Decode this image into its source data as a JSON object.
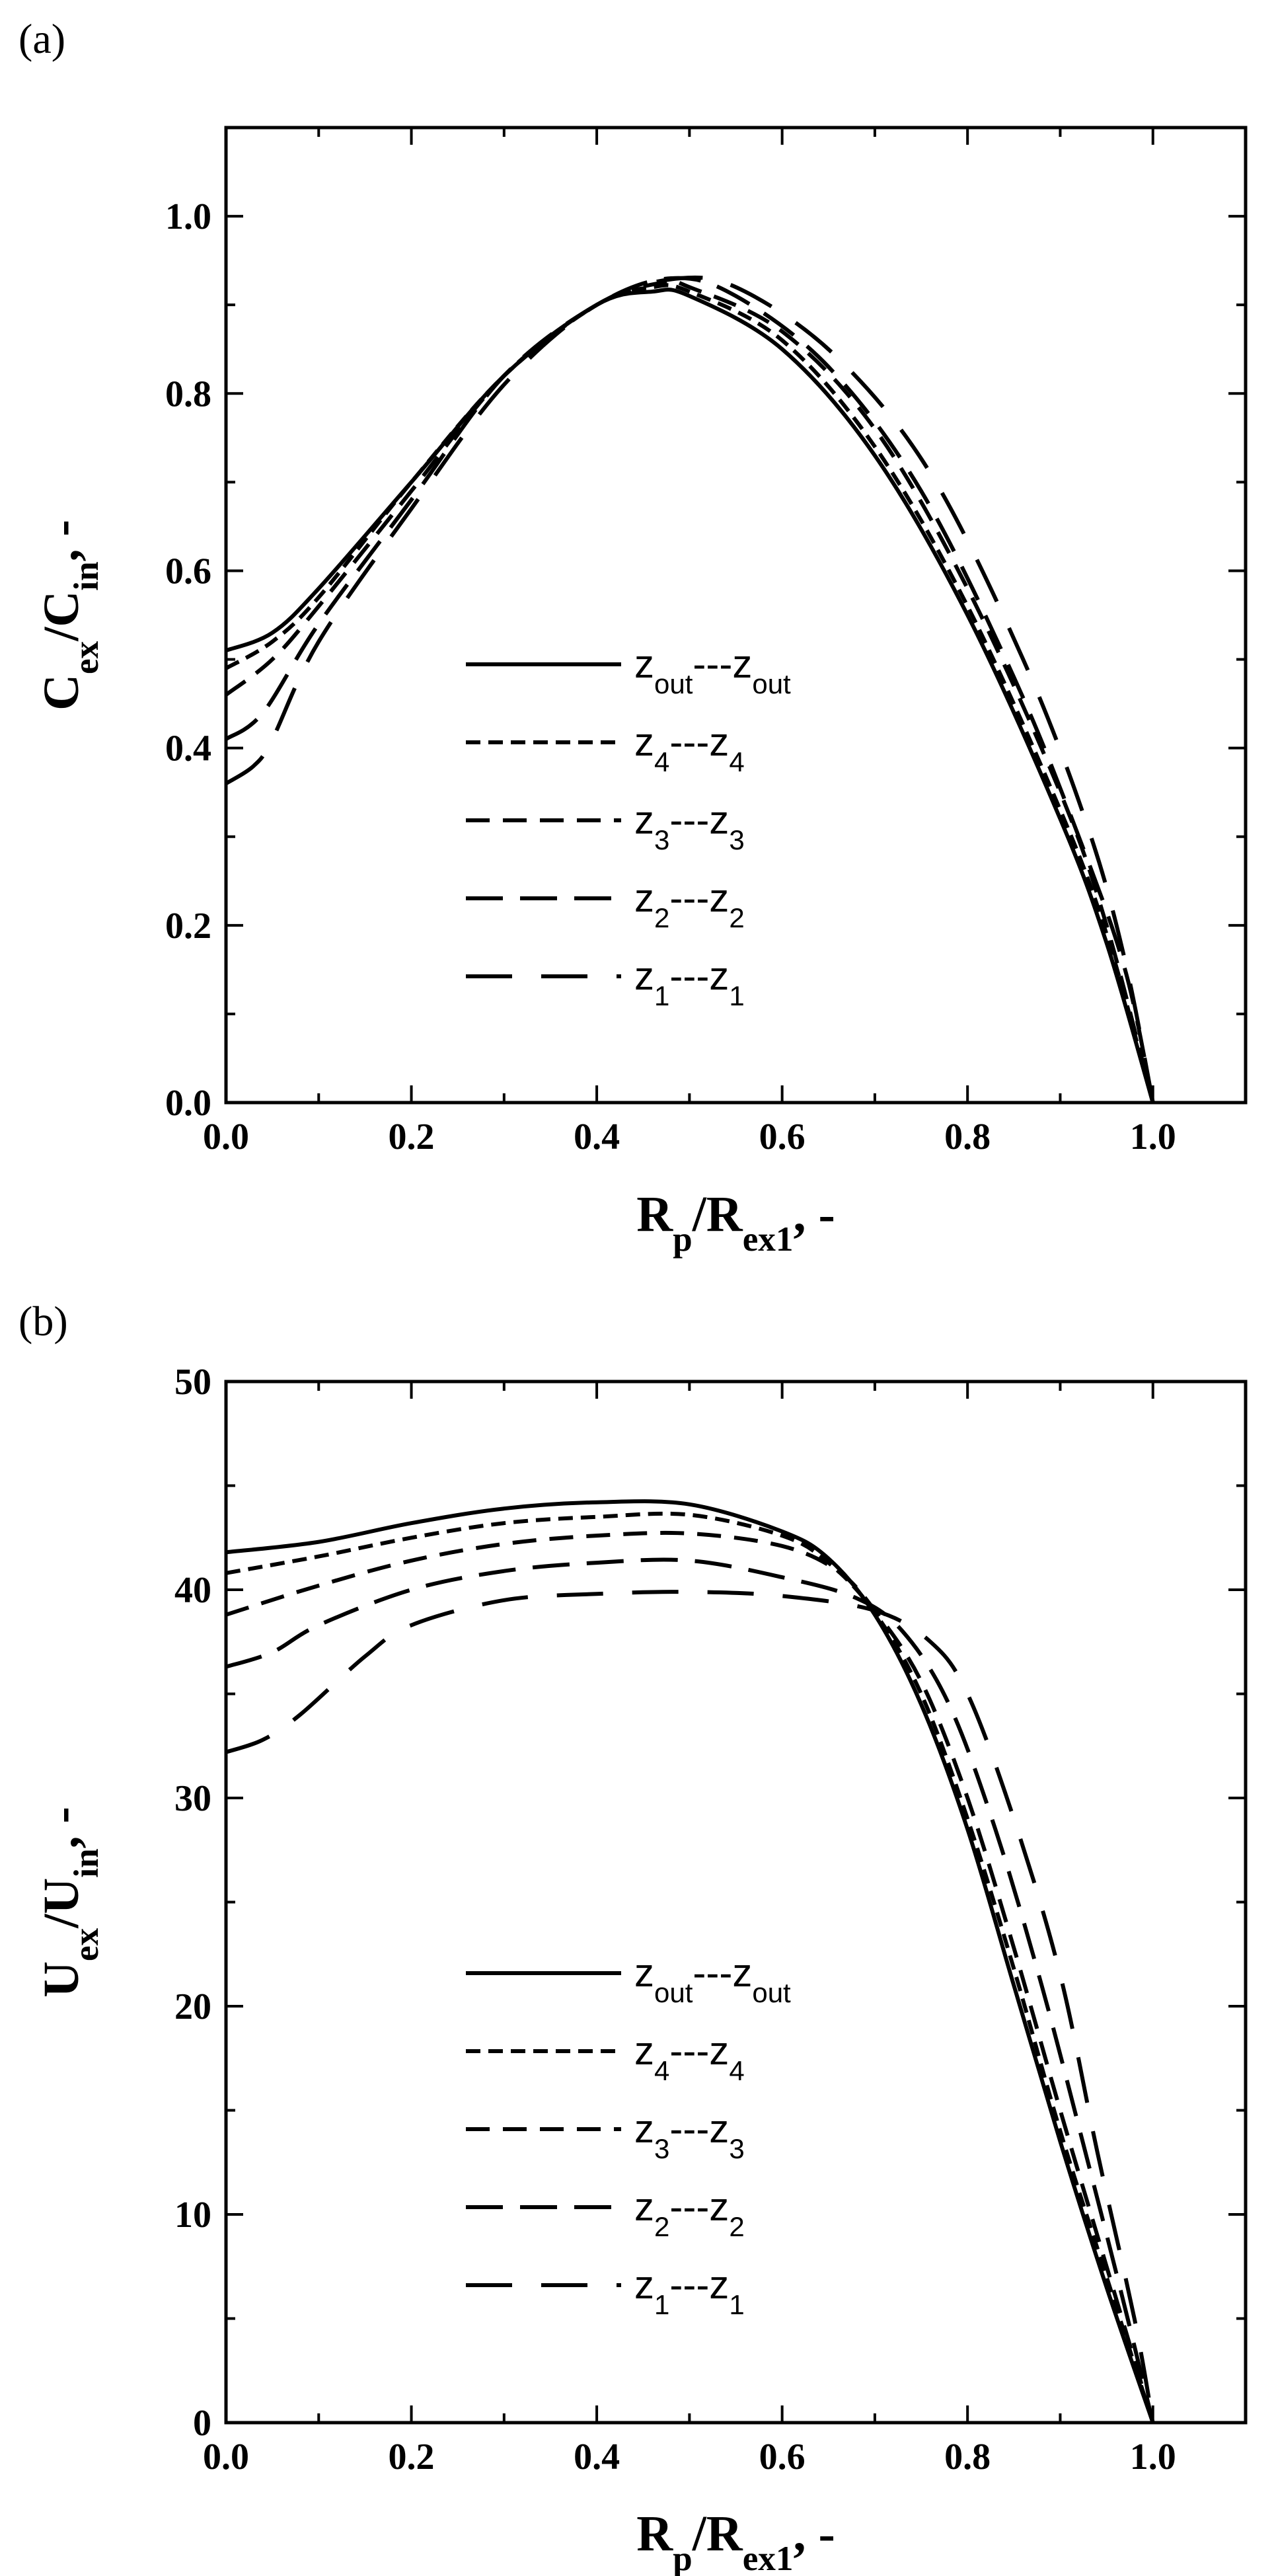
{
  "chart_data": [
    {
      "panel_label": "(a)",
      "type": "line",
      "xlabel": "Rp/Rex1, -",
      "ylabel": "Cex/Cin, -",
      "xlim": [
        0.0,
        1.1
      ],
      "ylim": [
        0.0,
        1.1
      ],
      "x_ticks": [
        "0.0",
        "0.2",
        "0.4",
        "0.6",
        "0.8",
        "1.0"
      ],
      "y_ticks": [
        "0.0",
        "0.2",
        "0.4",
        "0.6",
        "0.8",
        "1.0"
      ],
      "legend_position": "center",
      "series": [
        {
          "name": "zout---zout",
          "dash": "solid",
          "points": [
            [
              0,
              0.51
            ],
            [
              0.05,
              0.53
            ],
            [
              0.1,
              0.58
            ],
            [
              0.2,
              0.7
            ],
            [
              0.3,
              0.82
            ],
            [
              0.4,
              0.9
            ],
            [
              0.46,
              0.915
            ],
            [
              0.5,
              0.91
            ],
            [
              0.6,
              0.85
            ],
            [
              0.7,
              0.73
            ],
            [
              0.8,
              0.55
            ],
            [
              0.9,
              0.32
            ],
            [
              0.95,
              0.18
            ],
            [
              1.0,
              0.0
            ]
          ]
        },
        {
          "name": "z4---z4",
          "dash": "short",
          "points": [
            [
              0,
              0.49
            ],
            [
              0.05,
              0.52
            ],
            [
              0.1,
              0.57
            ],
            [
              0.2,
              0.7
            ],
            [
              0.3,
              0.82
            ],
            [
              0.4,
              0.9
            ],
            [
              0.46,
              0.92
            ],
            [
              0.5,
              0.915
            ],
            [
              0.6,
              0.86
            ],
            [
              0.7,
              0.74
            ],
            [
              0.8,
              0.56
            ],
            [
              0.9,
              0.33
            ],
            [
              0.95,
              0.19
            ],
            [
              1.0,
              0.0
            ]
          ]
        },
        {
          "name": "z3---z3",
          "dash": "medium",
          "points": [
            [
              0,
              0.46
            ],
            [
              0.05,
              0.5
            ],
            [
              0.1,
              0.56
            ],
            [
              0.2,
              0.69
            ],
            [
              0.3,
              0.82
            ],
            [
              0.4,
              0.9
            ],
            [
              0.47,
              0.925
            ],
            [
              0.5,
              0.92
            ],
            [
              0.6,
              0.87
            ],
            [
              0.7,
              0.76
            ],
            [
              0.8,
              0.58
            ],
            [
              0.9,
              0.35
            ],
            [
              0.95,
              0.2
            ],
            [
              1.0,
              0.0
            ]
          ]
        },
        {
          "name": "z2---z2",
          "dash": "long",
          "points": [
            [
              0,
              0.41
            ],
            [
              0.04,
              0.44
            ],
            [
              0.1,
              0.54
            ],
            [
              0.2,
              0.68
            ],
            [
              0.3,
              0.82
            ],
            [
              0.4,
              0.9
            ],
            [
              0.48,
              0.93
            ],
            [
              0.55,
              0.91
            ],
            [
              0.65,
              0.83
            ],
            [
              0.75,
              0.69
            ],
            [
              0.85,
              0.48
            ],
            [
              0.92,
              0.3
            ],
            [
              0.97,
              0.15
            ],
            [
              1.0,
              0.0
            ]
          ]
        },
        {
          "name": "z1---z1",
          "dash": "longgap",
          "points": [
            [
              0.0,
              0.36
            ],
            [
              0.03,
              0.38
            ],
            [
              0.05,
              0.41
            ],
            [
              0.1,
              0.52
            ],
            [
              0.2,
              0.67
            ],
            [
              0.3,
              0.81
            ],
            [
              0.4,
              0.9
            ],
            [
              0.49,
              0.93
            ],
            [
              0.56,
              0.915
            ],
            [
              0.66,
              0.84
            ],
            [
              0.76,
              0.71
            ],
            [
              0.86,
              0.5
            ],
            [
              0.93,
              0.31
            ],
            [
              0.97,
              0.16
            ],
            [
              1.0,
              0.0
            ]
          ]
        }
      ]
    },
    {
      "panel_label": "(b)",
      "type": "line",
      "xlabel": "Rp/Rex1, -",
      "ylabel": "Uex/Uin, -",
      "xlim": [
        0.0,
        1.1
      ],
      "ylim": [
        0,
        50
      ],
      "x_ticks": [
        "0.0",
        "0.2",
        "0.4",
        "0.6",
        "0.8",
        "1.0"
      ],
      "y_ticks": [
        "0",
        "10",
        "20",
        "30",
        "40",
        "50"
      ],
      "legend_position": "center",
      "series": [
        {
          "name": "zout---zout",
          "dash": "solid",
          "points": [
            [
              0,
              41.8
            ],
            [
              0.1,
              42.3
            ],
            [
              0.2,
              43.2
            ],
            [
              0.3,
              43.9
            ],
            [
              0.4,
              44.2
            ],
            [
              0.5,
              44.1
            ],
            [
              0.6,
              42.8
            ],
            [
              0.65,
              41.5
            ],
            [
              0.7,
              38.8
            ],
            [
              0.75,
              34.5
            ],
            [
              0.8,
              28.5
            ],
            [
              0.85,
              21.0
            ],
            [
              0.9,
              13.5
            ],
            [
              0.95,
              6.5
            ],
            [
              1.0,
              0.0
            ]
          ]
        },
        {
          "name": "z4---z4",
          "dash": "short",
          "points": [
            [
              0,
              40.8
            ],
            [
              0.1,
              41.6
            ],
            [
              0.2,
              42.5
            ],
            [
              0.3,
              43.2
            ],
            [
              0.4,
              43.5
            ],
            [
              0.5,
              43.6
            ],
            [
              0.6,
              42.6
            ],
            [
              0.65,
              41.3
            ],
            [
              0.7,
              38.9
            ],
            [
              0.75,
              35.0
            ],
            [
              0.8,
              29.0
            ],
            [
              0.85,
              21.8
            ],
            [
              0.9,
              14.0
            ],
            [
              0.95,
              7.0
            ],
            [
              1.0,
              0.0
            ]
          ]
        },
        {
          "name": "z3---z3",
          "dash": "medium",
          "points": [
            [
              0,
              38.8
            ],
            [
              0.1,
              40.2
            ],
            [
              0.2,
              41.4
            ],
            [
              0.3,
              42.2
            ],
            [
              0.4,
              42.6
            ],
            [
              0.5,
              42.7
            ],
            [
              0.6,
              42.1
            ],
            [
              0.66,
              40.9
            ],
            [
              0.7,
              39.0
            ],
            [
              0.75,
              35.6
            ],
            [
              0.8,
              30.0
            ],
            [
              0.85,
              22.8
            ],
            [
              0.9,
              15.0
            ],
            [
              0.95,
              7.5
            ],
            [
              1.0,
              0.0
            ]
          ]
        },
        {
          "name": "z2---z2",
          "dash": "long",
          "points": [
            [
              0,
              36.3
            ],
            [
              0.05,
              37.0
            ],
            [
              0.1,
              38.3
            ],
            [
              0.2,
              40.0
            ],
            [
              0.3,
              40.9
            ],
            [
              0.4,
              41.3
            ],
            [
              0.5,
              41.4
            ],
            [
              0.6,
              40.6
            ],
            [
              0.68,
              39.6
            ],
            [
              0.73,
              38.0
            ],
            [
              0.78,
              34.5
            ],
            [
              0.83,
              28.5
            ],
            [
              0.88,
              21.0
            ],
            [
              0.93,
              12.5
            ],
            [
              0.97,
              5.5
            ],
            [
              1.0,
              0.0
            ]
          ]
        },
        {
          "name": "z1---z1",
          "dash": "longgap",
          "points": [
            [
              0,
              32.2
            ],
            [
              0.04,
              32.8
            ],
            [
              0.08,
              34.0
            ],
            [
              0.15,
              36.8
            ],
            [
              0.2,
              38.3
            ],
            [
              0.3,
              39.5
            ],
            [
              0.4,
              39.8
            ],
            [
              0.5,
              39.9
            ],
            [
              0.6,
              39.7
            ],
            [
              0.7,
              39.0
            ],
            [
              0.76,
              37.5
            ],
            [
              0.8,
              35.0
            ],
            [
              0.85,
              29.0
            ],
            [
              0.9,
              21.5
            ],
            [
              0.94,
              13.0
            ],
            [
              0.98,
              5.0
            ],
            [
              1.0,
              0.0
            ]
          ]
        }
      ]
    }
  ]
}
